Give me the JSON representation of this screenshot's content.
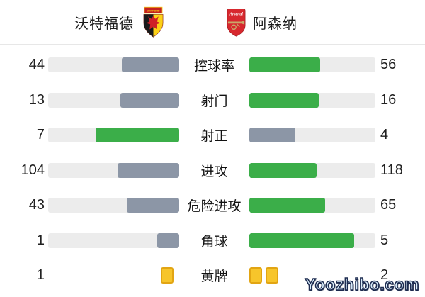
{
  "teams": {
    "home": {
      "name": "沃特福德",
      "badge": "watford-crest"
    },
    "away": {
      "name": "阿森纳",
      "badge": "arsenal-crest"
    }
  },
  "stats": [
    {
      "label": "控球率",
      "home": "44",
      "away": "56",
      "home_pct": 44.0,
      "away_pct": 56.0,
      "home_color": "gray",
      "away_color": "green"
    },
    {
      "label": "射门",
      "home": "13",
      "away": "16",
      "home_pct": 44.8,
      "away_pct": 55.2,
      "home_color": "gray",
      "away_color": "green"
    },
    {
      "label": "射正",
      "home": "7",
      "away": "4",
      "home_pct": 63.6,
      "away_pct": 36.4,
      "home_color": "green",
      "away_color": "gray"
    },
    {
      "label": "进攻",
      "home": "104",
      "away": "118",
      "home_pct": 46.8,
      "away_pct": 53.2,
      "home_color": "gray",
      "away_color": "green"
    },
    {
      "label": "危险进攻",
      "home": "43",
      "away": "65",
      "home_pct": 39.8,
      "away_pct": 60.2,
      "home_color": "gray",
      "away_color": "green"
    },
    {
      "label": "角球",
      "home": "1",
      "away": "5",
      "home_pct": 16.7,
      "away_pct": 83.3,
      "home_color": "gray",
      "away_color": "green"
    }
  ],
  "cards_row": {
    "label": "黄牌",
    "home_value": "1",
    "away_value": "2",
    "home_cards": 1,
    "away_cards": 2
  },
  "watermark": "Yoozhibo.com",
  "colors": {
    "green": "#3bae49",
    "gray": "#8c96a6",
    "track": "#ececec",
    "card_fill": "#f7c52b",
    "card_border": "#e2a513"
  }
}
